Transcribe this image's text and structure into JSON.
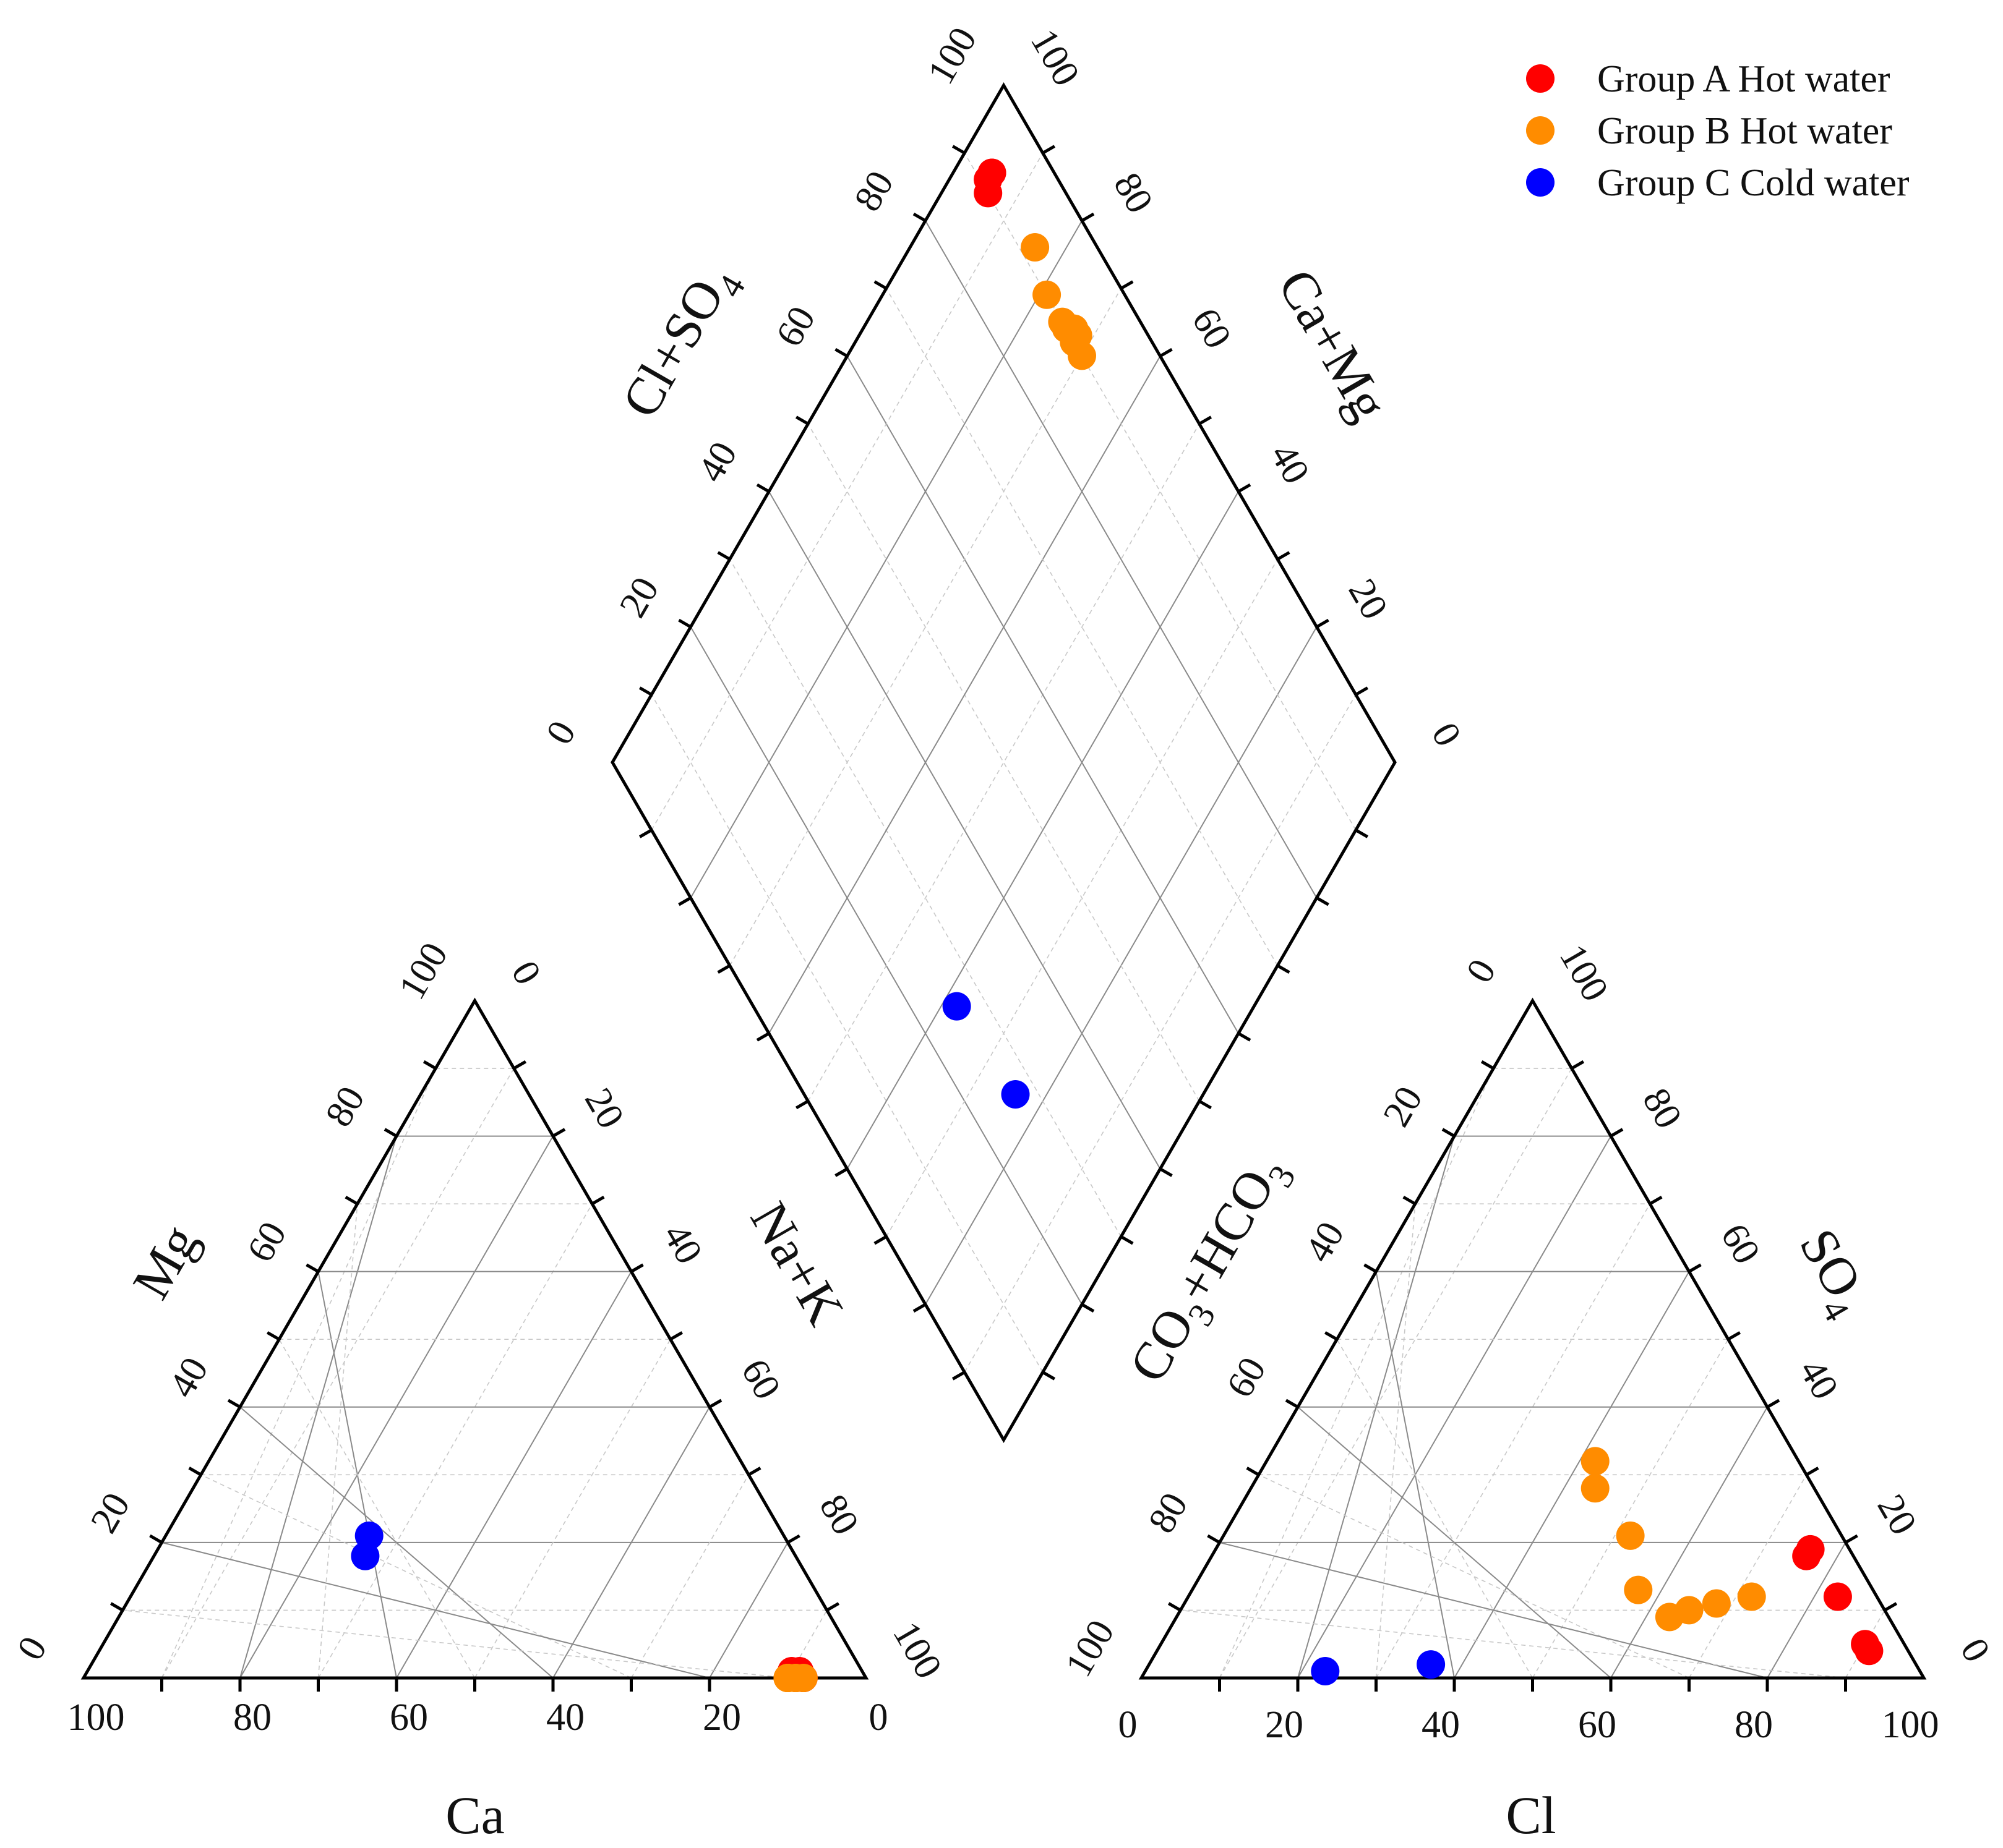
{
  "chart_data": {
    "type": "scatter",
    "subtype": "piper-diagram",
    "legend": {
      "position": "top-right",
      "items": [
        {
          "label": "Group A Hot water",
          "color": "#ff0000"
        },
        {
          "label": "Group B Hot water",
          "color": "#ff8c00"
        },
        {
          "label": "Group C Cold water",
          "color": "#0000ff"
        }
      ]
    },
    "cation_triangle": {
      "bottom_axis": {
        "label": "Ca",
        "ticks": [
          "100",
          "80",
          "60",
          "40",
          "20",
          "0"
        ]
      },
      "left_axis": {
        "label": "Mg",
        "ticks": [
          "0",
          "20",
          "40",
          "60",
          "80",
          "100"
        ]
      },
      "right_axis": {
        "label": "Na+K",
        "ticks": [
          "0",
          "20",
          "40",
          "60",
          "80",
          "100"
        ]
      }
    },
    "anion_triangle": {
      "bottom_axis": {
        "label": "Cl",
        "ticks": [
          "0",
          "20",
          "40",
          "60",
          "80",
          "100"
        ]
      },
      "left_axis": {
        "label_base": "CO",
        "label_sub1": "3",
        "label_mid": "+HCO",
        "label_sub2": "3",
        "ticks": [
          "0",
          "20",
          "40",
          "60",
          "80",
          "100"
        ]
      },
      "right_axis": {
        "label": "SO",
        "label_sub": "4",
        "ticks": [
          "100",
          "80",
          "60",
          "40",
          "20",
          "0"
        ]
      }
    },
    "diamond": {
      "upper_left_axis": {
        "label_base": "Cl+SO",
        "label_sub": "4",
        "ticks": [
          "0",
          "20",
          "40",
          "60",
          "80",
          "100"
        ]
      },
      "upper_right_axis": {
        "label": "Ca+Mg",
        "ticks": [
          "100",
          "80",
          "60",
          "40",
          "20",
          "0"
        ]
      }
    },
    "series": [
      {
        "name": "Group A Hot water",
        "color": "#ff0000",
        "samples": [
          {
            "Ca": 8,
            "Mg": 1,
            "NaK": 91,
            "CO3HCO3": 5,
            "SO4": 19,
            "Cl": 76
          },
          {
            "Ca": 9,
            "Mg": 1,
            "NaK": 90,
            "CO3HCO3": 6,
            "SO4": 18,
            "Cl": 76
          },
          {
            "Ca": 9,
            "Mg": 0,
            "NaK": 91,
            "CO3HCO3": 5,
            "SO4": 12,
            "Cl": 83
          },
          {
            "Ca": 8,
            "Mg": 0,
            "NaK": 92,
            "CO3HCO3": 5,
            "SO4": 5,
            "Cl": 90
          },
          {
            "Ca": 8,
            "Mg": 0,
            "NaK": 92,
            "CO3HCO3": 5,
            "SO4": 4,
            "Cl": 91
          }
        ]
      },
      {
        "name": "Group B Hot water",
        "color": "#ff8c00",
        "samples": [
          {
            "Ca": 10,
            "Mg": 0,
            "NaK": 90,
            "CO3HCO3": 28,
            "SO4": 28,
            "Cl": 44
          },
          {
            "Ca": 10,
            "Mg": 0,
            "NaK": 90,
            "CO3HCO3": 26,
            "SO4": 32,
            "Cl": 42
          },
          {
            "Ca": 9,
            "Mg": 0,
            "NaK": 91,
            "CO3HCO3": 27,
            "SO4": 21,
            "Cl": 52
          },
          {
            "Ca": 10,
            "Mg": 0,
            "NaK": 90,
            "CO3HCO3": 30,
            "SO4": 13,
            "Cl": 57
          },
          {
            "Ca": 9,
            "Mg": 0,
            "NaK": 91,
            "CO3HCO3": 28,
            "SO4": 9,
            "Cl": 63
          },
          {
            "Ca": 10,
            "Mg": 0,
            "NaK": 90,
            "CO3HCO3": 25,
            "SO4": 10,
            "Cl": 65
          },
          {
            "Ca": 10,
            "Mg": 0,
            "NaK": 90,
            "CO3HCO3": 21,
            "SO4": 11,
            "Cl": 68
          },
          {
            "Ca": 8,
            "Mg": 0,
            "NaK": 92,
            "CO3HCO3": 16,
            "SO4": 12,
            "Cl": 72
          }
        ]
      },
      {
        "name": "Group C Cold water",
        "color": "#0000ff",
        "samples": [
          {
            "Ca": 53,
            "Mg": 21,
            "NaK": 26,
            "CO3HCO3": 62,
            "SO4": 2,
            "Cl": 36
          },
          {
            "Ca": 55,
            "Mg": 18,
            "NaK": 27,
            "CO3HCO3": 76,
            "SO4": 1,
            "Cl": 23
          }
        ]
      }
    ]
  }
}
